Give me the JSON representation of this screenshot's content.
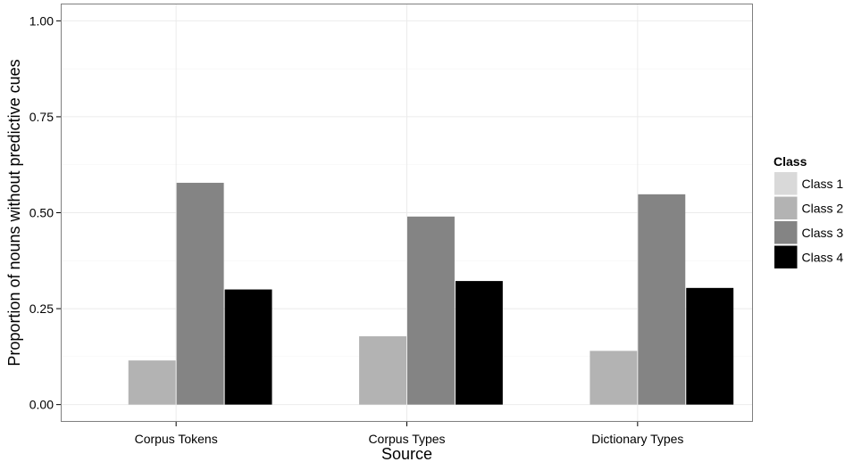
{
  "chart_data": {
    "type": "bar",
    "title": "",
    "xlabel": "Source",
    "ylabel": "Proportion of nouns without predictive cues",
    "categories": [
      "Corpus Tokens",
      "Corpus Types",
      "Dictionary Types"
    ],
    "series": [
      {
        "name": "Class 1",
        "color": "#d9d9d9",
        "values": [
          0,
          0,
          0
        ]
      },
      {
        "name": "Class 2",
        "color": "#b3b3b3",
        "values": [
          0.115,
          0.178,
          0.14
        ]
      },
      {
        "name": "Class 3",
        "color": "#848484",
        "values": [
          0.578,
          0.49,
          0.548
        ]
      },
      {
        "name": "Class 4",
        "color": "#000000",
        "values": [
          0.3,
          0.322,
          0.304
        ]
      }
    ],
    "ylim": [
      -0.045,
      1.045
    ],
    "yticks": [
      0.0,
      0.25,
      0.5,
      0.75,
      1.0
    ],
    "ytick_labels": [
      "0.00",
      "0.25",
      "0.50",
      "0.75",
      "1.00"
    ],
    "grid": true,
    "legend": {
      "title": "Class",
      "position": "right"
    },
    "panel_background": "#ffffff",
    "panel_border": "#7f7f7f",
    "grid_color": "#ebebeb"
  }
}
